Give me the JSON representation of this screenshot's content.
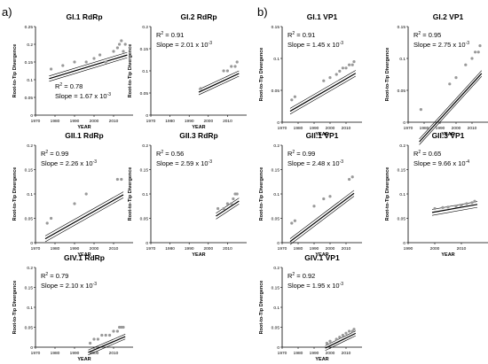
{
  "panels": [
    {
      "letter": "a)"
    },
    {
      "letter": "b)"
    }
  ],
  "chart_data": [
    {
      "type": "scatter",
      "title": "GI.1 RdRp",
      "xlabel": "YEAR",
      "ylabel": "Root-to-Tip Divergence",
      "r2_label": "R",
      "r2_value": "= 0.78",
      "slope_label": "Slope = 1.67 x 10",
      "slope_exp": "-3",
      "xlim": [
        1970,
        2020
      ],
      "ylim": [
        0,
        0.25
      ],
      "xticks": [
        1970,
        1980,
        1990,
        2000,
        2010
      ],
      "yticks": [
        0,
        0.05,
        0.1,
        0.15,
        0.2,
        0.25
      ],
      "points": [
        [
          1978,
          0.13
        ],
        [
          1984,
          0.14
        ],
        [
          1990,
          0.15
        ],
        [
          1996,
          0.15
        ],
        [
          2000,
          0.16
        ],
        [
          2003,
          0.17
        ],
        [
          2006,
          0.15
        ],
        [
          2010,
          0.18
        ],
        [
          2012,
          0.19
        ],
        [
          2013,
          0.2
        ],
        [
          2014,
          0.21
        ],
        [
          2015,
          0.18
        ],
        [
          2016,
          0.2
        ]
      ],
      "fit": {
        "intercept": 0.158,
        "slope": 0.00167
      }
    },
    {
      "type": "scatter",
      "title": "GI.2 RdRp",
      "xlabel": "YEAR",
      "ylabel": "Root-to-Tip Divergence",
      "r2_label": "R",
      "r2_value": "= 0.91",
      "slope_label": "Slope = 2.01 x 10",
      "slope_exp": "-3",
      "xlim": [
        1970,
        2020
      ],
      "ylim": [
        0,
        0.2
      ],
      "xticks": [
        1970,
        1980,
        1990,
        2000,
        2010
      ],
      "yticks": [
        0,
        0.05,
        0.1,
        0.15,
        0.2
      ],
      "points": [
        [
          1996,
          0.06
        ],
        [
          2008,
          0.1
        ],
        [
          2010,
          0.1
        ],
        [
          2012,
          0.11
        ],
        [
          2014,
          0.11
        ],
        [
          2015,
          0.12
        ]
      ],
      "fit": {
        "intercept": 0.082,
        "slope": 0.00201
      }
    },
    {
      "type": "scatter",
      "title": "GII.1 RdRp",
      "xlabel": "YEAR",
      "ylabel": "Root-to-Tip Divergence",
      "r2_label": "R",
      "r2_value": "= 0.99",
      "slope_label": "Slope = 2.26 x 10",
      "slope_exp": "-3",
      "xlim": [
        1970,
        2020
      ],
      "ylim": [
        0,
        0.2
      ],
      "xticks": [
        1970,
        1980,
        1990,
        2000,
        2010
      ],
      "yticks": [
        0,
        0.05,
        0.1,
        0.15,
        0.2
      ],
      "points": [
        [
          1976,
          0.04
        ],
        [
          1978,
          0.05
        ],
        [
          1990,
          0.08
        ],
        [
          1996,
          0.1
        ],
        [
          2012,
          0.13
        ],
        [
          2014,
          0.13
        ]
      ],
      "fit": {
        "intercept": 0.087,
        "slope": 0.00226
      }
    },
    {
      "type": "scatter",
      "title": "GII.3 RdRp",
      "xlabel": "YEAR",
      "ylabel": "Root-to-Tip Divergence",
      "r2_label": "R",
      "r2_value": "= 0.56",
      "slope_label": "Slope = 2.59 x 10",
      "slope_exp": "-3",
      "xlim": [
        1970,
        2020
      ],
      "ylim": [
        0,
        0.2
      ],
      "xticks": [
        1970,
        1980,
        1990,
        2000,
        2010
      ],
      "yticks": [
        0,
        0.05,
        0.1,
        0.15,
        0.2
      ],
      "points": [
        [
          2005,
          0.07
        ],
        [
          2008,
          0.07
        ],
        [
          2010,
          0.08
        ],
        [
          2012,
          0.08
        ],
        [
          2013,
          0.09
        ],
        [
          2014,
          0.1
        ],
        [
          2015,
          0.1
        ]
      ],
      "fit": {
        "intercept": 0.07,
        "slope": 0.00259
      }
    },
    {
      "type": "scatter",
      "title": "GIV.1 RdRp",
      "xlabel": "YEAR",
      "ylabel": "Root-to-Tip Divergence",
      "r2_label": "R",
      "r2_value": "= 0.79",
      "slope_label": "Slope = 2.10 x 10",
      "slope_exp": "-3",
      "xlim": [
        1970,
        2020
      ],
      "ylim": [
        0,
        0.2
      ],
      "xticks": [
        1970,
        1980,
        1990,
        2000,
        2010
      ],
      "yticks": [
        0,
        0.05,
        0.1,
        0.15,
        0.2
      ],
      "points": [
        [
          1998,
          0.01
        ],
        [
          2000,
          0.02
        ],
        [
          2002,
          0.02
        ],
        [
          2004,
          0.03
        ],
        [
          2006,
          0.03
        ],
        [
          2008,
          0.03
        ],
        [
          2010,
          0.04
        ],
        [
          2012,
          0.04
        ],
        [
          2013,
          0.05
        ],
        [
          2014,
          0.05
        ],
        [
          2015,
          0.05
        ]
      ],
      "fit": {
        "intercept": 0.014,
        "slope": 0.0021
      }
    },
    {
      "type": "scatter",
      "title": "GI.1 VP1",
      "xlabel": "YEAR",
      "ylabel": "Root-to-Tip Divergence",
      "r2_label": "R",
      "r2_value": "= 0.91",
      "slope_label": "Slope = 1.45 x 10",
      "slope_exp": "-3",
      "xlim": [
        1970,
        2020
      ],
      "ylim": [
        0,
        0.15
      ],
      "xticks": [
        1970,
        1980,
        1990,
        2000,
        2010
      ],
      "yticks": [
        0,
        0.05,
        0.1,
        0.15
      ],
      "points": [
        [
          1976,
          0.035
        ],
        [
          1978,
          0.04
        ],
        [
          1996,
          0.065
        ],
        [
          2000,
          0.07
        ],
        [
          2004,
          0.075
        ],
        [
          2006,
          0.08
        ],
        [
          2008,
          0.085
        ],
        [
          2010,
          0.085
        ],
        [
          2012,
          0.09
        ],
        [
          2014,
          0.09
        ],
        [
          2015,
          0.095
        ]
      ],
      "fit": {
        "intercept": 0.068,
        "slope": 0.00145
      }
    },
    {
      "type": "scatter",
      "title": "GI.2 VP1",
      "xlabel": "YEAR",
      "ylabel": "Root-to-Tip Divergence",
      "r2_label": "R",
      "r2_value": "= 0.95",
      "slope_label": "Slope = 2.75 x 10",
      "slope_exp": "-3",
      "xlim": [
        1970,
        2020
      ],
      "ylim": [
        0,
        0.15
      ],
      "xticks": [
        1970,
        1980,
        1990,
        2000,
        2010
      ],
      "yticks": [
        0,
        0.05,
        0.1,
        0.15
      ],
      "points": [
        [
          1978,
          0.02
        ],
        [
          1996,
          0.06
        ],
        [
          2000,
          0.07
        ],
        [
          2006,
          0.09
        ],
        [
          2010,
          0.1
        ],
        [
          2012,
          0.11
        ],
        [
          2014,
          0.11
        ],
        [
          2015,
          0.12
        ]
      ],
      "fit": {
        "intercept": 0.06,
        "slope": 0.00275
      }
    },
    {
      "type": "scatter",
      "title": "GII.1 VP1",
      "xlabel": "YEAR",
      "ylabel": "Root-to-Tip Divergence",
      "r2_label": "R",
      "r2_value": "= 0.99",
      "slope_label": "Slope = 2.48 x 10",
      "slope_exp": "-3",
      "xlim": [
        1970,
        2020
      ],
      "ylim": [
        0,
        0.2
      ],
      "xticks": [
        1970,
        1980,
        1990,
        2000,
        2010
      ],
      "yticks": [
        0,
        0.05,
        0.1,
        0.15,
        0.2
      ],
      "points": [
        [
          1976,
          0.04
        ],
        [
          1978,
          0.045
        ],
        [
          1990,
          0.075
        ],
        [
          1996,
          0.09
        ],
        [
          2000,
          0.095
        ],
        [
          2012,
          0.13
        ],
        [
          2014,
          0.135
        ]
      ],
      "fit": {
        "intercept": 0.089,
        "slope": 0.00248
      }
    },
    {
      "type": "scatter",
      "title": "GII.3 VP1",
      "xlabel": "YEAR",
      "ylabel": "Root-to-Tip Divergence",
      "r2_label": "R",
      "r2_value": "= 0.65",
      "slope_label": "Slope = 9.66 x 10",
      "slope_exp": "-4",
      "xlim": [
        1990,
        2020
      ],
      "ylim": [
        0,
        0.2
      ],
      "xticks": [
        1990,
        2000,
        2010
      ],
      "yticks": [
        0,
        0.05,
        0.1,
        0.15,
        0.2
      ],
      "points": [
        [
          2000,
          0.07
        ],
        [
          2003,
          0.072
        ],
        [
          2005,
          0.073
        ],
        [
          2008,
          0.075
        ],
        [
          2010,
          0.076
        ],
        [
          2012,
          0.08
        ],
        [
          2014,
          0.082
        ],
        [
          2015,
          0.085
        ]
      ],
      "fit": {
        "intercept": 0.0727,
        "slope": 0.000966
      }
    },
    {
      "type": "scatter",
      "title": "GIV.1 VP1",
      "xlabel": "YEAR",
      "ylabel": "Root-to-Tip Divergence",
      "r2_label": "R",
      "r2_value": "= 0.92",
      "slope_label": "Slope = 1.95 x 10",
      "slope_exp": "-3",
      "xlim": [
        1970,
        2020
      ],
      "ylim": [
        0,
        0.2
      ],
      "xticks": [
        1970,
        1980,
        1990,
        2000,
        2010
      ],
      "yticks": [
        0,
        0.05,
        0.1,
        0.15,
        0.2
      ],
      "points": [
        [
          1998,
          0.01
        ],
        [
          2000,
          0.015
        ],
        [
          2004,
          0.02
        ],
        [
          2006,
          0.025
        ],
        [
          2008,
          0.03
        ],
        [
          2010,
          0.035
        ],
        [
          2012,
          0.04
        ],
        [
          2014,
          0.04
        ],
        [
          2015,
          0.045
        ]
      ],
      "fit": {
        "intercept": 0.023,
        "slope": 0.00195
      }
    }
  ]
}
